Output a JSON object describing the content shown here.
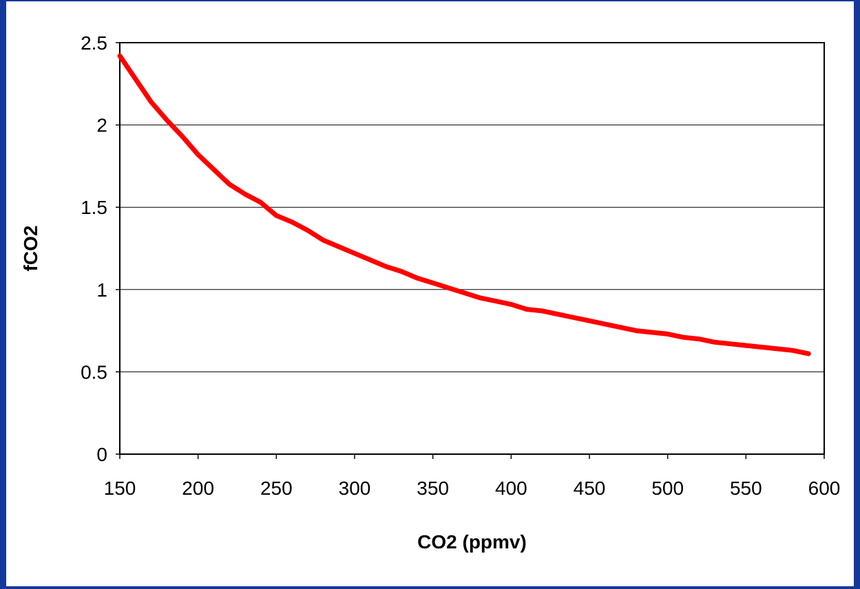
{
  "theme": {
    "frame_color": "#15399b",
    "line_color": "#ff0000",
    "grid_color": "#000000"
  },
  "chart_data": {
    "type": "line",
    "title": "",
    "xlabel": "CO2 (ppmv)",
    "ylabel": "fCO2",
    "xlim": [
      150,
      600
    ],
    "ylim": [
      0,
      2.5
    ],
    "xticks": [
      "150",
      "200",
      "250",
      "300",
      "350",
      "400",
      "450",
      "500",
      "550",
      "600"
    ],
    "yticks": [
      "0",
      "0.5",
      "1",
      "1.5",
      "2",
      "2.5"
    ],
    "grid": "horizontal",
    "legend": "none",
    "series": [
      {
        "color": "#ff0000",
        "x": [
          150,
          160,
          170,
          180,
          190,
          200,
          210,
          220,
          230,
          240,
          250,
          260,
          270,
          280,
          290,
          300,
          310,
          320,
          330,
          340,
          350,
          360,
          370,
          380,
          390,
          400,
          410,
          420,
          430,
          440,
          450,
          460,
          470,
          480,
          490,
          500,
          510,
          520,
          530,
          540,
          550,
          560,
          570,
          580,
          590
        ],
        "y": [
          2.42,
          2.28,
          2.14,
          2.03,
          1.93,
          1.82,
          1.73,
          1.64,
          1.58,
          1.53,
          1.45,
          1.41,
          1.36,
          1.3,
          1.26,
          1.22,
          1.18,
          1.14,
          1.11,
          1.07,
          1.04,
          1.01,
          0.98,
          0.95,
          0.93,
          0.91,
          0.88,
          0.87,
          0.85,
          0.83,
          0.81,
          0.79,
          0.77,
          0.75,
          0.74,
          0.73,
          0.71,
          0.7,
          0.68,
          0.67,
          0.66,
          0.65,
          0.64,
          0.63,
          0.61
        ]
      }
    ]
  }
}
